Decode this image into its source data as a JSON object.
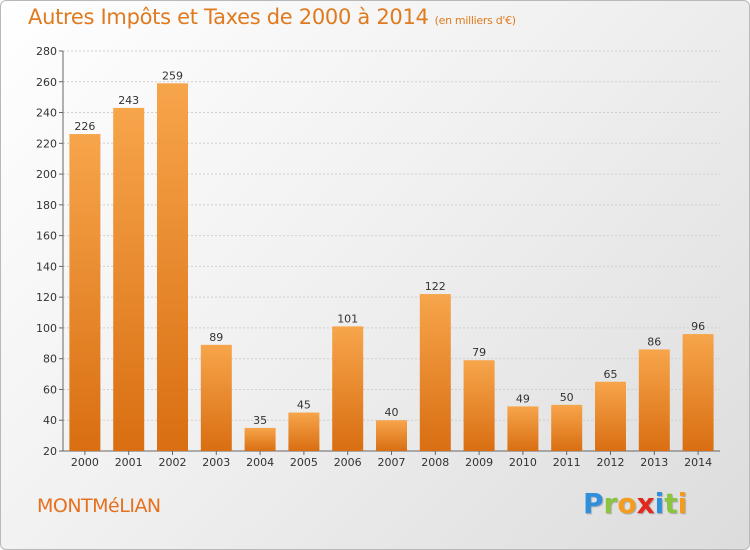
{
  "chart_data": {
    "type": "bar",
    "title": "Autres Impôts et Taxes de 2000 à 2014",
    "subtitle": "(en milliers d'€)",
    "categories": [
      "2000",
      "2001",
      "2002",
      "2003",
      "2004",
      "2005",
      "2006",
      "2007",
      "2008",
      "2009",
      "2010",
      "2011",
      "2012",
      "2013",
      "2014"
    ],
    "values": [
      226,
      243,
      259,
      89,
      35,
      45,
      101,
      40,
      122,
      79,
      49,
      50,
      65,
      86,
      96
    ],
    "xlabel": "",
    "ylabel": "",
    "ylim": [
      20,
      280
    ],
    "yticks": [
      20,
      40,
      60,
      80,
      100,
      120,
      140,
      160,
      180,
      200,
      220,
      240,
      260,
      280
    ],
    "grid": true,
    "legend": "none"
  },
  "footer": {
    "town": "MONTMéLIAN",
    "brand_letters": [
      {
        "ch": "P",
        "color": "#2f8fdc"
      },
      {
        "ch": "r",
        "color": "#8bc53f"
      },
      {
        "ch": "o",
        "color": "#f39c1e"
      },
      {
        "ch": "x",
        "color": "#e2271d"
      },
      {
        "ch": "i",
        "color": "#2f8fdc"
      },
      {
        "ch": "t",
        "color": "#8bc53f"
      },
      {
        "ch": "i",
        "color": "#f39c1e"
      }
    ]
  },
  "colors": {
    "bar_top": "#f7a54b",
    "bar_bottom": "#d96e12",
    "accent": "#e07a1f"
  }
}
